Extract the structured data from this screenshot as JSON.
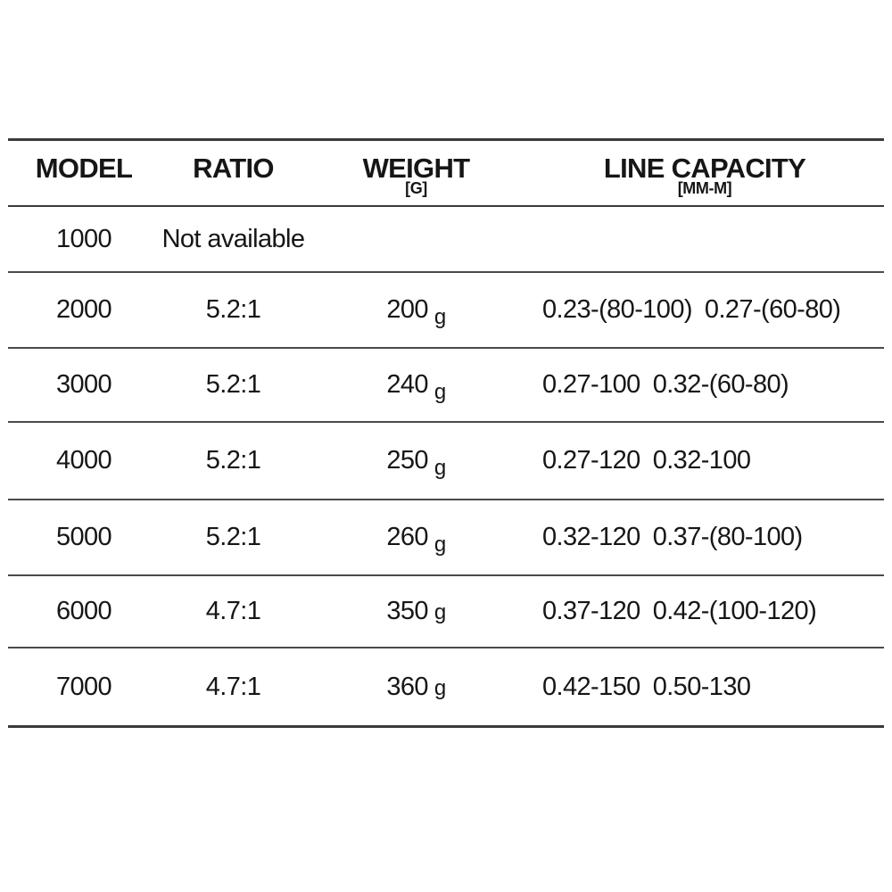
{
  "chart_data": {
    "type": "table",
    "title": "",
    "columns": [
      "MODEL",
      "RATIO",
      "WEIGHT [G]",
      "LINE CAPACITY [MM-M]"
    ],
    "rows": [
      [
        "1000",
        "Not available",
        "",
        ""
      ],
      [
        "2000",
        "5.2:1",
        "200 g",
        "0.23-(80-100) 0.27-(60-80)"
      ],
      [
        "3000",
        "5.2:1",
        "240 g",
        "0.27-100 0.32-(60-80)"
      ],
      [
        "4000",
        "5.2:1",
        "250 g",
        "0.27-120 0.32-100"
      ],
      [
        "5000",
        "5.2:1",
        "260 g",
        "0.32-120 0.37-(80-100)"
      ],
      [
        "6000",
        "4.7:1",
        "350 g",
        "0.37-120 0.42-(100-120)"
      ],
      [
        "7000",
        "4.7:1",
        "360 g",
        "0.42-150 0.50-130"
      ]
    ]
  },
  "colors": {
    "background": "#ffffff",
    "text": "#161616",
    "line": "#3a3a3a"
  },
  "table": {
    "headers": [
      {
        "label": "MODEL",
        "unit": ""
      },
      {
        "label": "RATIO",
        "unit": ""
      },
      {
        "label": "WEIGHT",
        "unit": "[G]"
      },
      {
        "label": "LINE CAPACITY",
        "unit": "[MM-M]"
      }
    ],
    "rows": [
      {
        "model": "1000",
        "ratio": "Not available",
        "weight": "",
        "weight_unit": "",
        "cap1": "",
        "cap2": ""
      },
      {
        "model": "2000",
        "ratio": "5.2:1",
        "weight": "200",
        "weight_unit": "g",
        "cap1": "0.23-(80-100)",
        "cap2": "0.27-(60-80)"
      },
      {
        "model": "3000",
        "ratio": "5.2:1",
        "weight": "240",
        "weight_unit": "g",
        "cap1": "0.27-100",
        "cap2": "0.32-(60-80)"
      },
      {
        "model": "4000",
        "ratio": "5.2:1",
        "weight": "250",
        "weight_unit": "g",
        "cap1": "0.27-120",
        "cap2": "0.32-100"
      },
      {
        "model": "5000",
        "ratio": "5.2:1",
        "weight": "260",
        "weight_unit": "g",
        "cap1": "0.32-120",
        "cap2": "0.37-(80-100)"
      },
      {
        "model": "6000",
        "ratio": "4.7:1",
        "weight": "350",
        "weight_unit": "g",
        "cap1": "0.37-120",
        "cap2": "0.42-(100-120)"
      },
      {
        "model": "7000",
        "ratio": "4.7:1",
        "weight": "360",
        "weight_unit": "g",
        "cap1": "0.42-150",
        "cap2": "0.50-130"
      }
    ]
  }
}
